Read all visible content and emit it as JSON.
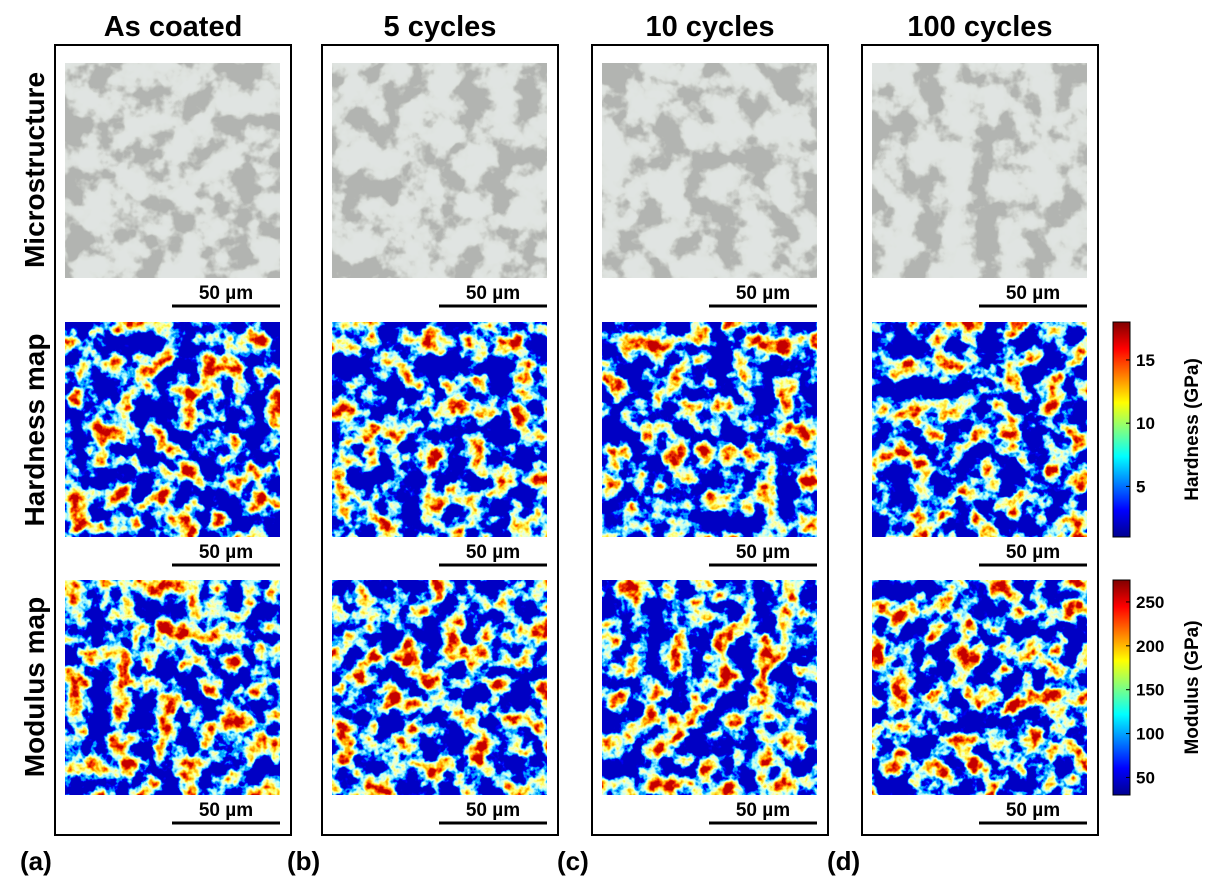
{
  "columns": [
    {
      "title": "As coated",
      "label": "(a)"
    },
    {
      "title": "5 cycles",
      "label": "(b)"
    },
    {
      "title": "10 cycles",
      "label": "(c)"
    },
    {
      "title": "100 cycles",
      "label": "(d)"
    }
  ],
  "row_labels": [
    "Microstructure",
    "Hardness map",
    "Modulus map"
  ],
  "scale_bar": "50 µm",
  "colorbars": [
    {
      "label": "Hardness (GPa)",
      "lim": [
        1,
        18
      ],
      "ticks": [
        5,
        10,
        15
      ]
    },
    {
      "label": "Modulus (GPa)",
      "lim": [
        30,
        275
      ],
      "ticks": [
        50,
        100,
        150,
        200,
        250
      ]
    }
  ]
}
